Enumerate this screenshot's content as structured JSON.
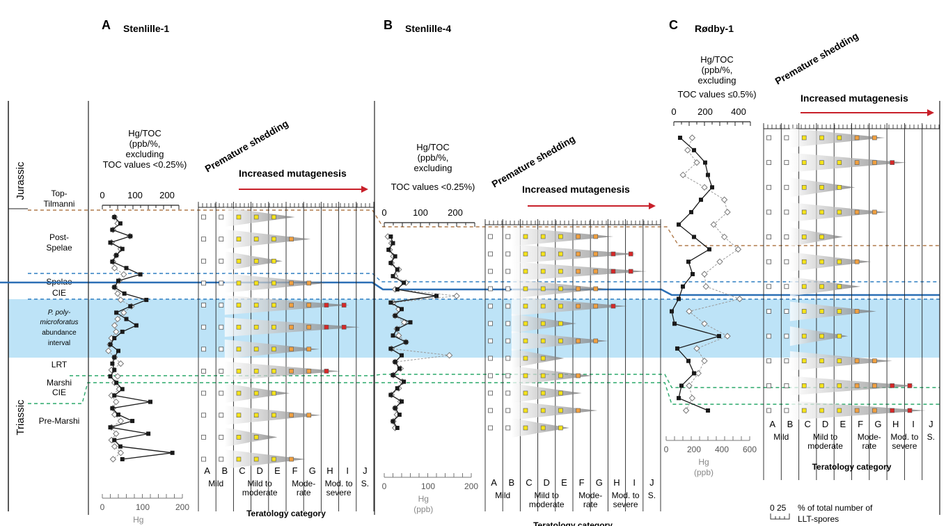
{
  "panels": [
    {
      "letter": "A",
      "well": "Stenlille-1"
    },
    {
      "letter": "B",
      "well": "Stenlille-4"
    },
    {
      "letter": "C",
      "well": "Rødby-1"
    }
  ],
  "periods": [
    "Jurassic",
    "Triassic"
  ],
  "intervals": [
    "Top-\nTilmanni",
    "Post-\nSpelae",
    "Spelae\nCIE",
    "P. poly-\nmicroforatus",
    "abundance\ninterval",
    "LRT",
    "Marshi\nCIE",
    "Pre-Marshi"
  ],
  "hgtoc_titles": {
    "A": [
      "Hg/TOC",
      "(ppb/%,",
      "excluding",
      "TOC values <0.25%)"
    ],
    "B": [
      "Hg/TOC",
      "(ppb/%,",
      "excluding",
      "TOC values <0.25%)"
    ],
    "C": [
      "Hg/TOC",
      "(ppb/%,",
      "excluding",
      "TOC values ≤0.5%)"
    ]
  },
  "hg_axis_label": [
    "Hg",
    "(ppb)"
  ],
  "premature": "Premature shedding",
  "mutagenesis": "Increased mutagenesis",
  "categories": [
    "A",
    "B",
    "C",
    "D",
    "E",
    "F",
    "G",
    "H",
    "I",
    "J"
  ],
  "category_groups": [
    "Mild",
    "Mild to\nmoderate",
    "Mode-\nrate",
    "Mod. to\nsevere",
    "S."
  ],
  "teratology_label": "Teratology category",
  "legend": {
    "scale": "0   25",
    "label": "% of total number of\nLLT-spores"
  },
  "colors": {
    "hg_line": "#1a1a1a",
    "hgtoc_line": "#9a9a9a",
    "mild": "#ffffff",
    "moderate_mild": "#f5e31b",
    "moderate": "#f0a040",
    "severe": "#d62828",
    "abundance_band": "#bde3f7",
    "spelae_line": "#2b6fb5",
    "spelae_dash": "#2f7ec2",
    "top_tilmanni_dash": "#b07a4a",
    "marshi_dash": "#2aa86a",
    "arrow": "#c8202a"
  },
  "chart_data": [
    {
      "type": "line",
      "title": "Stenlille-1",
      "series": [
        {
          "name": "Hg",
          "x_ppb": [
            30,
            45,
            25,
            70,
            20,
            50,
            35,
            25,
            60,
            95,
            40,
            30,
            55,
            110,
            70,
            35,
            60,
            85,
            50,
            30,
            20,
            40,
            30,
            25,
            30,
            20,
            35,
            50,
            30,
            120,
            25,
            40,
            75,
            20,
            115,
            30,
            45,
            175,
            50
          ],
          "x_range": [
            0,
            200
          ]
        },
        {
          "name": "Hg/TOC",
          "x_ppbpct": [
            40,
            50,
            35,
            90,
            30,
            60,
            45,
            35,
            40,
            70,
            55,
            40,
            50,
            60,
            95,
            70,
            50,
            40,
            45,
            30,
            25,
            20,
            40,
            60,
            30,
            50,
            40,
            55,
            30,
            45,
            35,
            40,
            60,
            30,
            45,
            30,
            40,
            60,
            35
          ],
          "x_range": [
            0,
            250
          ]
        }
      ],
      "hg_ticks": [
        0,
        100,
        200
      ],
      "hgtoc_ticks": [
        0,
        100,
        200
      ],
      "teratology_categories": [
        "A",
        "B",
        "C",
        "D",
        "E",
        "F",
        "G",
        "H",
        "I",
        "J"
      ]
    },
    {
      "type": "line",
      "title": "Stenlille-4",
      "series": [
        {
          "name": "Hg",
          "x_ppb": [
            15,
            20,
            10,
            25,
            15,
            30,
            20,
            45,
            30,
            120,
            15,
            40,
            25,
            60,
            30,
            20,
            50,
            15,
            40,
            25,
            35,
            20,
            45,
            30,
            15,
            40,
            25,
            35,
            20,
            30
          ],
          "x_range": [
            0,
            200
          ]
        },
        {
          "name": "Hg/TOC",
          "x_ppbpct": [
            10,
            20,
            15,
            25,
            20,
            40,
            30,
            60,
            30,
            200,
            25,
            40,
            30,
            55,
            35,
            40,
            60,
            20,
            180,
            30,
            45,
            25,
            50,
            40,
            20,
            45,
            30,
            35,
            25,
            30
          ],
          "x_range": [
            0,
            250
          ]
        }
      ],
      "hg_ticks": [
        0,
        100,
        200
      ],
      "hgtoc_ticks": [
        0,
        100,
        200
      ],
      "teratology_categories": [
        "A",
        "B",
        "C",
        "D",
        "E",
        "F",
        "G",
        "H",
        "I",
        "J"
      ]
    },
    {
      "type": "line",
      "title": "Rødby-1",
      "series": [
        {
          "name": "Hg",
          "x_ppb": [
            100,
            200,
            280,
            300,
            330,
            250,
            180,
            90,
            200,
            310,
            160,
            190,
            120,
            90,
            40,
            60,
            380,
            80,
            160,
            200,
            110,
            90,
            300
          ],
          "x_range": [
            0,
            600
          ]
        },
        {
          "name": "Hg/TOC",
          "x_ppbpct": [
            120,
            90,
            150,
            60,
            200,
            330,
            350,
            260,
            330,
            420,
            300,
            200,
            210,
            430,
            100,
            200,
            350,
            150,
            200,
            160,
            100,
            120,
            80
          ],
          "x_range": [
            0,
            500
          ]
        }
      ],
      "hg_ticks": [
        0,
        200,
        400,
        600
      ],
      "hgtoc_ticks": [
        0,
        200,
        400
      ],
      "teratology_categories": [
        "A",
        "B",
        "C",
        "D",
        "E",
        "F",
        "G",
        "H",
        "I",
        "J"
      ]
    }
  ]
}
